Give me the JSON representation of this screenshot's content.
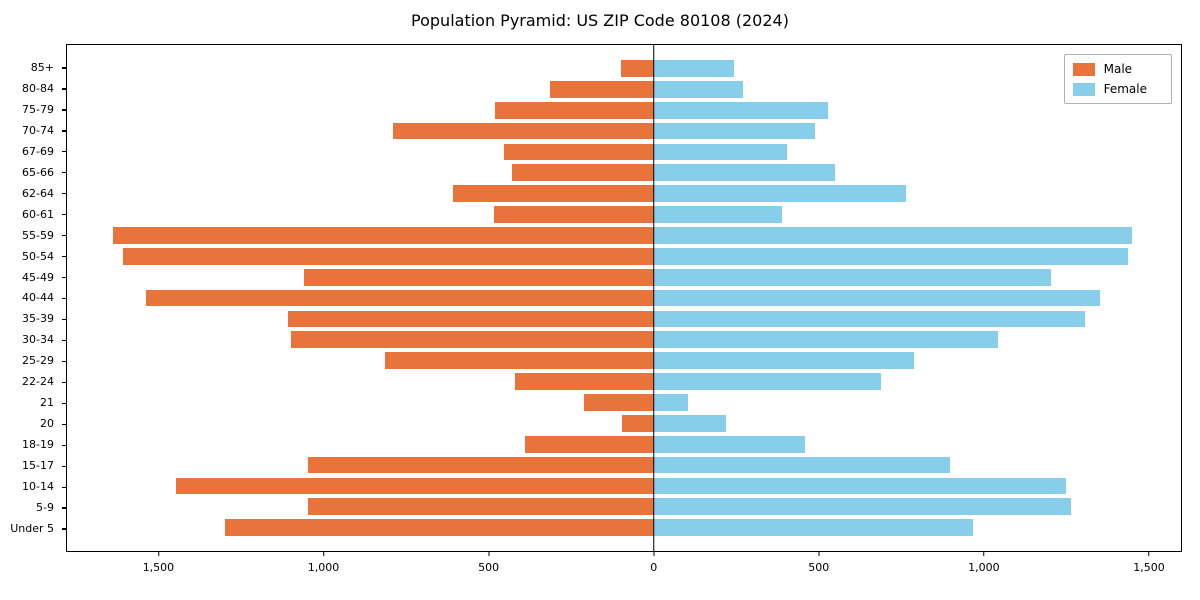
{
  "chart_data": {
    "type": "bar",
    "variant": "population-pyramid",
    "title": "Population Pyramid: US ZIP Code 80108 (2024)",
    "categories": [
      "85+",
      "80-84",
      "75-79",
      "70-74",
      "67-69",
      "65-66",
      "62-64",
      "60-61",
      "55-59",
      "50-54",
      "45-49",
      "40-44",
      "35-39",
      "30-34",
      "25-29",
      "22-24",
      "21",
      "20",
      "18-19",
      "15-17",
      "10-14",
      "5-9",
      "Under 5"
    ],
    "series": [
      {
        "name": "Male",
        "color": "#e8743b",
        "values": [
          100,
          315,
          480,
          790,
          455,
          430,
          610,
          485,
          1640,
          1610,
          1060,
          1540,
          1110,
          1100,
          815,
          420,
          210,
          95,
          390,
          1050,
          1450,
          1050,
          1300
        ]
      },
      {
        "name": "Female",
        "color": "#87ceeb",
        "values": [
          245,
          270,
          530,
          490,
          405,
          550,
          765,
          390,
          1450,
          1440,
          1205,
          1355,
          1310,
          1045,
          790,
          690,
          105,
          220,
          460,
          900,
          1250,
          1265,
          970
        ]
      }
    ],
    "xlim": [
      -1780,
      1600
    ],
    "xticks": [
      -1500,
      -1000,
      -500,
      0,
      500,
      1000,
      1500
    ],
    "xtick_labels": [
      "1,500",
      "1,000",
      "500",
      "0",
      "500",
      "1,000",
      "1,500"
    ],
    "legend": {
      "position": "top-right",
      "entries": [
        "Male",
        "Female"
      ]
    },
    "grid": false,
    "axis_color": "#000000",
    "background": "#ffffff"
  }
}
